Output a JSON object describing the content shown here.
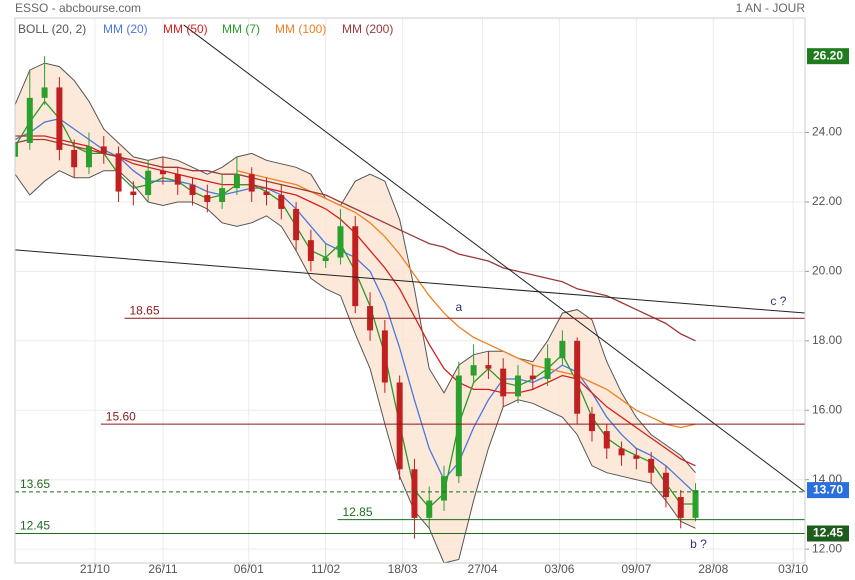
{
  "chart_data": {
    "type": "candlestick",
    "title": "ESSO - abcbourse.com",
    "subtitle": "1 AN - JOUR",
    "xlim": [
      0,
      267
    ],
    "ylim": [
      11.6,
      27.3
    ],
    "grid": true,
    "xticks": [
      {
        "value": 27,
        "label": "21/10"
      },
      {
        "value": 50,
        "label": "26/11"
      },
      {
        "value": 79,
        "label": "06/01"
      },
      {
        "value": 105,
        "label": "11/02"
      },
      {
        "value": 131,
        "label": "18/03"
      },
      {
        "value": 158,
        "label": "27/04"
      },
      {
        "value": 184,
        "label": "03/06"
      },
      {
        "value": 210,
        "label": "09/07"
      },
      {
        "value": 236,
        "label": "28/08"
      },
      {
        "value": 263,
        "label": "03/10"
      }
    ],
    "yticks": [
      {
        "value": 12,
        "label": "12.00"
      },
      {
        "value": 14,
        "label": "14.00"
      },
      {
        "value": 16,
        "label": "16.00"
      },
      {
        "value": 18,
        "label": "18.00"
      },
      {
        "value": 20,
        "label": "20.00"
      },
      {
        "value": 22,
        "label": "22.00"
      },
      {
        "value": 24,
        "label": "24.00"
      }
    ],
    "up_color": "#2ca02c",
    "down_color": "#c0201f",
    "x": [
      0,
      5,
      10,
      15,
      20,
      25,
      30,
      35,
      40,
      45,
      50,
      55,
      60,
      65,
      70,
      75,
      80,
      85,
      90,
      95,
      100,
      105,
      110,
      115,
      120,
      125,
      130,
      135,
      140,
      145,
      150,
      155,
      160,
      165,
      170,
      175,
      180,
      185,
      190,
      195,
      200,
      205,
      210,
      215,
      220,
      225,
      230
    ],
    "open": [
      23.3,
      23.7,
      25.0,
      25.3,
      23.5,
      23.0,
      23.6,
      23.4,
      22.3,
      22.2,
      22.9,
      22.8,
      22.5,
      22.2,
      22.0,
      22.4,
      22.8,
      22.3,
      22.2,
      21.8,
      20.9,
      20.3,
      20.4,
      21.3,
      19.0,
      18.3,
      16.8,
      14.3,
      12.9,
      13.4,
      14.1,
      17.0,
      17.3,
      17.2,
      16.4,
      17.0,
      16.9,
      17.5,
      18.0,
      15.9,
      15.4,
      14.9,
      14.7,
      14.6,
      14.2,
      13.5,
      12.9
    ],
    "high": [
      24.1,
      25.8,
      26.2,
      25.6,
      23.8,
      24.0,
      23.9,
      23.6,
      22.6,
      23.2,
      23.3,
      23.0,
      22.7,
      22.5,
      22.8,
      23.3,
      23.0,
      22.7,
      22.5,
      22.0,
      21.2,
      20.8,
      21.8,
      21.6,
      19.4,
      18.6,
      17.0,
      14.6,
      13.8,
      14.4,
      17.4,
      17.9,
      17.7,
      17.5,
      17.3,
      17.3,
      17.9,
      18.3,
      18.1,
      16.1,
      15.6,
      15.1,
      14.9,
      14.8,
      14.4,
      13.7,
      13.9
    ],
    "low": [
      23.0,
      23.5,
      24.8,
      23.2,
      22.7,
      22.8,
      23.1,
      22.0,
      21.9,
      22.0,
      22.5,
      22.2,
      21.9,
      21.7,
      21.8,
      22.2,
      22.0,
      21.9,
      21.5,
      20.6,
      20.0,
      20.1,
      20.2,
      18.8,
      18.0,
      16.5,
      14.0,
      12.3,
      12.6,
      13.1,
      13.9,
      16.8,
      16.9,
      16.1,
      16.2,
      16.6,
      16.7,
      17.3,
      15.6,
      15.1,
      14.6,
      14.4,
      14.3,
      13.9,
      13.2,
      12.6,
      12.8
    ],
    "close": [
      23.7,
      25.0,
      25.3,
      23.5,
      23.0,
      23.6,
      23.4,
      22.3,
      22.2,
      22.9,
      22.8,
      22.5,
      22.2,
      22.0,
      22.4,
      22.8,
      22.3,
      22.2,
      21.8,
      20.9,
      20.3,
      20.4,
      21.3,
      19.0,
      18.3,
      16.8,
      14.3,
      12.9,
      13.4,
      14.1,
      17.0,
      17.3,
      17.2,
      16.4,
      17.0,
      16.9,
      17.5,
      18.0,
      15.9,
      15.4,
      14.9,
      14.7,
      14.6,
      14.2,
      13.5,
      12.9,
      13.7
    ],
    "bollinger": {
      "name": "BOLL (20, 2)",
      "color": "#555555",
      "fill": "#fde3d0",
      "upper": [
        24.8,
        25.8,
        26.0,
        25.9,
        25.5,
        24.9,
        24.1,
        23.7,
        23.3,
        23.2,
        23.3,
        23.2,
        23.0,
        22.8,
        23.0,
        23.3,
        23.4,
        23.2,
        23.1,
        23.0,
        22.8,
        22.1,
        21.9,
        22.6,
        22.8,
        22.6,
        21.5,
        19.5,
        17.2,
        16.5,
        17.3,
        17.6,
        17.7,
        17.7,
        17.5,
        17.4,
        18.0,
        18.8,
        18.9,
        18.6,
        17.4,
        16.5,
        15.8,
        15.3,
        15.0,
        14.7,
        14.2
      ],
      "lower": [
        22.8,
        22.2,
        22.6,
        22.9,
        22.7,
        22.7,
        22.9,
        22.9,
        22.5,
        22.0,
        21.9,
        22.0,
        22.0,
        21.8,
        21.4,
        21.3,
        21.4,
        21.6,
        21.3,
        20.6,
        19.8,
        19.5,
        19.3,
        18.2,
        17.2,
        15.6,
        14.1,
        13.1,
        12.6,
        11.6,
        11.7,
        13.4,
        14.9,
        16.1,
        16.3,
        16.2,
        16.0,
        15.8,
        15.3,
        14.4,
        14.2,
        14.1,
        14.0,
        13.9,
        13.4,
        12.8,
        12.6
      ]
    },
    "series": [
      {
        "name": "MM (20)",
        "color": "#4a78e0",
        "values": [
          23.8,
          24.0,
          24.3,
          24.4,
          24.1,
          23.8,
          23.5,
          23.3,
          22.9,
          22.6,
          22.6,
          22.6,
          22.5,
          22.3,
          22.2,
          22.3,
          22.4,
          22.4,
          22.2,
          21.8,
          21.3,
          20.8,
          20.6,
          20.4,
          20.0,
          19.1,
          17.8,
          16.3,
          14.9,
          14.0,
          14.5,
          15.5,
          16.3,
          16.9,
          16.9,
          16.8,
          17.0,
          17.3,
          17.1,
          16.5,
          15.8,
          15.3,
          14.9,
          14.7,
          14.4,
          14.0,
          13.6
        ]
      },
      {
        "name": "MM (50)",
        "color": "#d62020",
        "values": [
          23.9,
          23.9,
          23.9,
          23.8,
          23.7,
          23.6,
          23.4,
          23.3,
          23.1,
          23.0,
          22.9,
          22.8,
          22.7,
          22.6,
          22.5,
          22.5,
          22.5,
          22.4,
          22.3,
          22.2,
          22.0,
          21.8,
          21.5,
          21.1,
          20.6,
          20.1,
          19.5,
          18.7,
          17.9,
          17.2,
          16.8,
          16.6,
          16.6,
          16.5,
          16.5,
          16.6,
          16.8,
          17.0,
          16.9,
          16.5,
          16.1,
          15.8,
          15.5,
          15.2,
          14.9,
          14.6,
          14.4
        ]
      },
      {
        "name": "MM (7)",
        "color": "#2a9a2a",
        "values": [
          23.6,
          24.3,
          24.9,
          24.4,
          23.6,
          23.4,
          23.4,
          22.8,
          22.4,
          22.5,
          22.7,
          22.6,
          22.3,
          22.1,
          22.2,
          22.5,
          22.5,
          22.3,
          22.0,
          21.3,
          20.6,
          20.4,
          20.8,
          20.0,
          19.0,
          17.6,
          15.6,
          13.7,
          13.2,
          13.6,
          15.6,
          16.8,
          17.2,
          16.8,
          16.7,
          16.9,
          17.2,
          17.6,
          16.8,
          15.8,
          15.2,
          14.9,
          14.7,
          14.5,
          13.9,
          13.3,
          13.3
        ]
      },
      {
        "name": "MM (100)",
        "color": "#f08020",
        "values": [
          null,
          null,
          null,
          null,
          null,
          null,
          null,
          null,
          null,
          null,
          null,
          null,
          null,
          null,
          null,
          22.9,
          22.8,
          22.7,
          22.6,
          22.5,
          22.3,
          22.1,
          21.9,
          21.7,
          21.4,
          21.0,
          20.5,
          19.9,
          19.3,
          18.8,
          18.4,
          18.1,
          17.9,
          17.7,
          17.5,
          17.3,
          17.2,
          17.1,
          17.0,
          16.8,
          16.6,
          16.3,
          16.0,
          15.8,
          15.6,
          15.5,
          15.6
        ]
      },
      {
        "name": "MM (200)",
        "color": "#9b3a3a",
        "values": [
          23.7,
          23.8,
          23.8,
          23.7,
          23.6,
          23.5,
          23.4,
          23.3,
          23.2,
          23.1,
          23.0,
          23.0,
          22.9,
          22.9,
          22.8,
          22.8,
          22.7,
          22.6,
          22.5,
          22.4,
          22.3,
          22.2,
          22.0,
          21.8,
          21.6,
          21.4,
          21.2,
          21.0,
          20.8,
          20.7,
          20.5,
          20.4,
          20.3,
          20.1,
          20.0,
          19.9,
          19.8,
          19.7,
          19.5,
          19.4,
          19.3,
          19.1,
          18.9,
          18.7,
          18.5,
          18.2,
          18.0
        ]
      }
    ],
    "levels": [
      {
        "value": 18.65,
        "from": 37,
        "color": "#8b1a1a"
      },
      {
        "value": {
          "value": 15.6,
          "label": "15.60"
        },
        "from": 29,
        "color": "#8b1a1a"
      },
      {
        "value": 12.85,
        "from": 109,
        "color": "#1e6b1e"
      },
      {
        "value": 12.45,
        "from": 0,
        "color": "#1e6b1e"
      },
      {
        "value": 13.65,
        "from": 0,
        "color": "#1e6b1e",
        "dashed": true
      }
    ],
    "trend_lines": [
      {
        "x": [
          0,
          267
        ],
        "y": [
          20.62,
          18.8
        ],
        "color": "#222222"
      },
      {
        "x": [
          57,
          267
        ],
        "y": [
          27.1,
          13.65
        ],
        "color": "#222222"
      }
    ],
    "annotations": [
      {
        "text": "a",
        "x": 150,
        "y": 18.95
      },
      {
        "text": "b ?",
        "x": 231,
        "y": 12.13
      },
      {
        "text": "c ?",
        "x": 258,
        "y": 19.12
      }
    ],
    "price_tags": [
      {
        "value": {
          "value": 26.2,
          "label": "26.20"
        },
        "color": "#1e7b1e"
      },
      {
        "value": {
          "value": 13.7,
          "label": "13.70"
        },
        "color": "#2a6fdb"
      },
      {
        "value": 12.45,
        "color": "#1e5c1e"
      }
    ]
  }
}
